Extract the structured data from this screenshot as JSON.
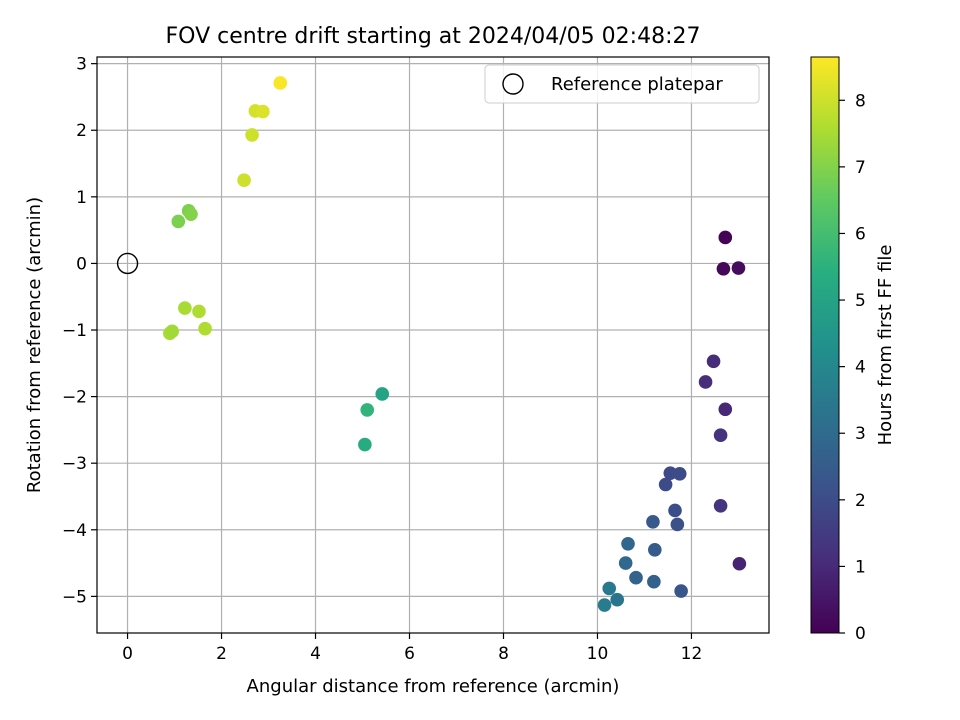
{
  "chart_data": {
    "type": "scatter",
    "title": "FOV centre drift starting at 2024/04/05 02:48:27",
    "xlabel": "Angular distance from reference (arcmin)",
    "ylabel": "Rotation from reference (arcmin)",
    "xlim": [
      -0.65,
      13.65
    ],
    "ylim": [
      -5.55,
      3.1
    ],
    "xticks": [
      0,
      2,
      4,
      6,
      8,
      10,
      12
    ],
    "yticks": [
      -5,
      -4,
      -3,
      -2,
      -1,
      0,
      1,
      2,
      3
    ],
    "grid": true,
    "legend": {
      "placement": "top-right",
      "entries": [
        "Reference platepar"
      ]
    },
    "reference_point": {
      "name": "Reference platepar",
      "x": 0,
      "y": 0
    },
    "colorbar": {
      "label": "Hours from first FF file",
      "min": 0,
      "max": 8.65,
      "ticks": [
        0,
        1,
        2,
        3,
        4,
        5,
        6,
        7,
        8
      ],
      "colormap": "viridis"
    },
    "points": [
      {
        "x": 12.72,
        "y": 0.39,
        "c": 0.05
      },
      {
        "x": 12.68,
        "y": -0.08,
        "c": 0.15
      },
      {
        "x": 13.0,
        "y": -0.07,
        "c": 0.25
      },
      {
        "x": 12.47,
        "y": -1.47,
        "c": 1.05
      },
      {
        "x": 12.3,
        "y": -1.78,
        "c": 1.1
      },
      {
        "x": 12.72,
        "y": -2.19,
        "c": 0.95
      },
      {
        "x": 12.62,
        "y": -2.58,
        "c": 1.25
      },
      {
        "x": 12.62,
        "y": -3.64,
        "c": 1.3
      },
      {
        "x": 13.02,
        "y": -4.51,
        "c": 0.85
      },
      {
        "x": 11.55,
        "y": -3.15,
        "c": 1.9
      },
      {
        "x": 11.75,
        "y": -3.16,
        "c": 1.95
      },
      {
        "x": 11.45,
        "y": -3.32,
        "c": 2.0
      },
      {
        "x": 11.65,
        "y": -3.71,
        "c": 2.05
      },
      {
        "x": 11.7,
        "y": -3.92,
        "c": 2.1
      },
      {
        "x": 11.18,
        "y": -3.88,
        "c": 2.4
      },
      {
        "x": 11.22,
        "y": -4.3,
        "c": 2.5
      },
      {
        "x": 10.65,
        "y": -4.21,
        "c": 2.85
      },
      {
        "x": 10.6,
        "y": -4.5,
        "c": 2.9
      },
      {
        "x": 10.82,
        "y": -4.72,
        "c": 2.75
      },
      {
        "x": 11.2,
        "y": -4.78,
        "c": 2.65
      },
      {
        "x": 11.78,
        "y": -4.92,
        "c": 2.3
      },
      {
        "x": 10.25,
        "y": -4.88,
        "c": 3.5
      },
      {
        "x": 10.42,
        "y": -5.05,
        "c": 3.3
      },
      {
        "x": 10.15,
        "y": -5.13,
        "c": 3.6
      },
      {
        "x": 5.42,
        "y": -1.96,
        "c": 5.0
      },
      {
        "x": 5.1,
        "y": -2.2,
        "c": 5.6
      },
      {
        "x": 5.05,
        "y": -2.72,
        "c": 5.3
      },
      {
        "x": 0.9,
        "y": -1.05,
        "c": 7.5
      },
      {
        "x": 0.95,
        "y": -1.02,
        "c": 7.4
      },
      {
        "x": 1.22,
        "y": -0.67,
        "c": 7.5
      },
      {
        "x": 1.52,
        "y": -0.72,
        "c": 7.6
      },
      {
        "x": 1.65,
        "y": -0.98,
        "c": 7.6
      },
      {
        "x": 1.08,
        "y": 0.63,
        "c": 6.9
      },
      {
        "x": 1.3,
        "y": 0.79,
        "c": 6.9
      },
      {
        "x": 1.35,
        "y": 0.74,
        "c": 7.0
      },
      {
        "x": 2.48,
        "y": 1.25,
        "c": 8.0
      },
      {
        "x": 2.65,
        "y": 1.93,
        "c": 8.0
      },
      {
        "x": 2.72,
        "y": 2.29,
        "c": 8.1
      },
      {
        "x": 2.88,
        "y": 2.28,
        "c": 8.2
      },
      {
        "x": 3.25,
        "y": 2.71,
        "c": 8.6
      }
    ]
  }
}
